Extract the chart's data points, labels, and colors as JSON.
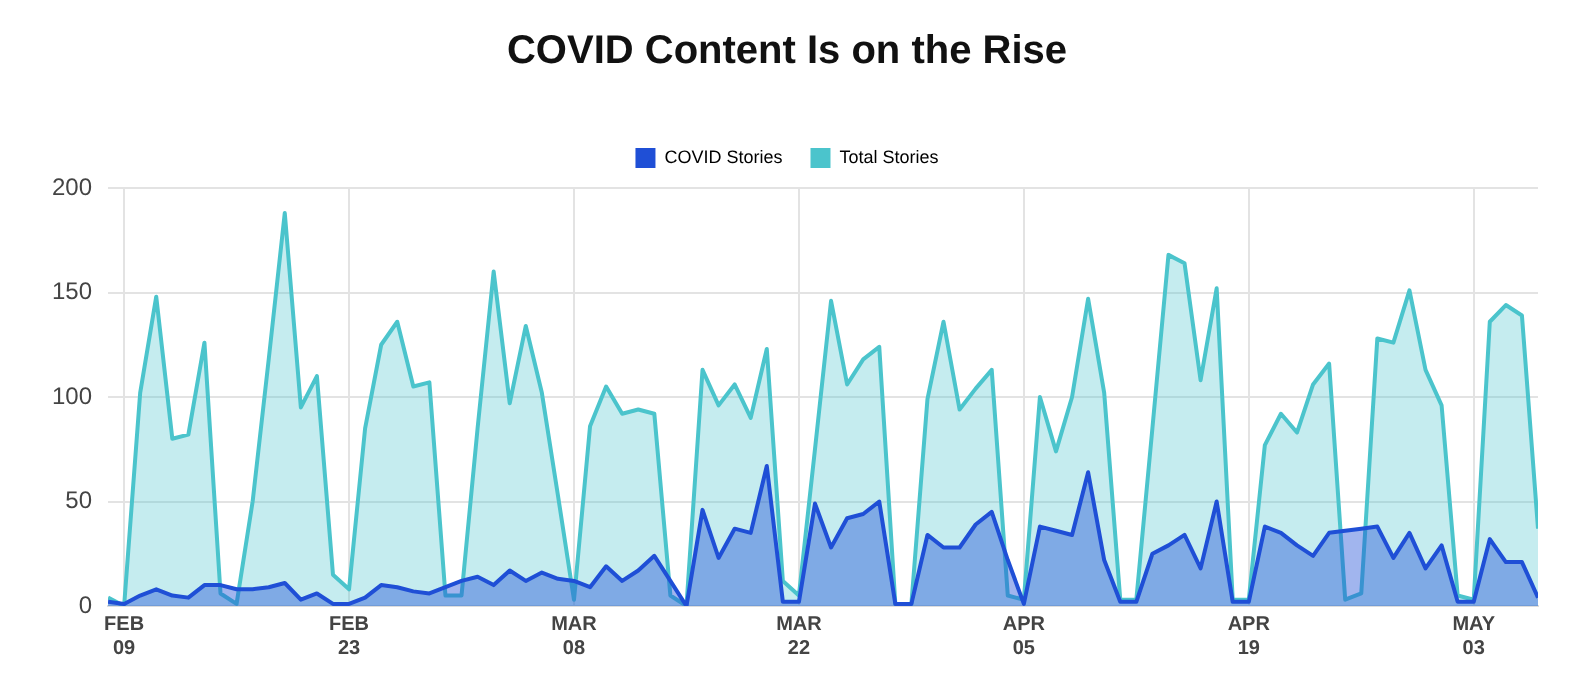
{
  "chart_data": {
    "type": "area",
    "title": "COVID Content Is on the Rise",
    "x": [
      "--02-08",
      "--02-09",
      "--02-10",
      "--02-11",
      "--02-12",
      "--02-13",
      "--02-14",
      "--02-15",
      "--02-16",
      "--02-17",
      "--02-18",
      "--02-19",
      "--02-20",
      "--02-21",
      "--02-22",
      "--02-23",
      "--02-24",
      "--02-25",
      "--02-26",
      "--02-27",
      "--02-28",
      "--02-29",
      "--03-01",
      "--03-02",
      "--03-03",
      "--03-04",
      "--03-05",
      "--03-06",
      "--03-07",
      "--03-08",
      "--03-09",
      "--03-10",
      "--03-11",
      "--03-12",
      "--03-13",
      "--03-14",
      "--03-15",
      "--03-16",
      "--03-17",
      "--03-18",
      "--03-19",
      "--03-20",
      "--03-21",
      "--03-22",
      "--03-23",
      "--03-24",
      "--03-25",
      "--03-26",
      "--03-27",
      "--03-28",
      "--03-29",
      "--03-30",
      "--03-31",
      "--04-01",
      "--04-02",
      "--04-03",
      "--04-04",
      "--04-05",
      "--04-06",
      "--04-07",
      "--04-08",
      "--04-09",
      "--04-10",
      "--04-11",
      "--04-12",
      "--04-13",
      "--04-14",
      "--04-15",
      "--04-16",
      "--04-17",
      "--04-18",
      "--04-19",
      "--04-20",
      "--04-21",
      "--04-22",
      "--04-23",
      "--04-24",
      "--04-25",
      "--04-26",
      "--04-27",
      "--04-28",
      "--04-29",
      "--04-30",
      "--05-01",
      "--05-02",
      "--05-03",
      "--05-04",
      "--05-05",
      "--05-06",
      "--05-07"
    ],
    "series": [
      {
        "name": "COVID Stories",
        "color": "#1f4fd6",
        "values": [
          2,
          1,
          5,
          8,
          5,
          4,
          10,
          10,
          8,
          8,
          9,
          11,
          3,
          6,
          1,
          1,
          4,
          10,
          9,
          7,
          6,
          9,
          12,
          14,
          10,
          17,
          12,
          16,
          13,
          12,
          9,
          19,
          12,
          17,
          24,
          12,
          0,
          46,
          23,
          37,
          35,
          67,
          2,
          2,
          49,
          28,
          42,
          44,
          50,
          1,
          1,
          34,
          28,
          28,
          39,
          45,
          22,
          1,
          38,
          36,
          34,
          64,
          22,
          2,
          2,
          25,
          29,
          34,
          18,
          50,
          2,
          2,
          38,
          35,
          29,
          24,
          35,
          36,
          37,
          38,
          23,
          35,
          18,
          29,
          2,
          2,
          32,
          21,
          21,
          4
        ]
      },
      {
        "name": "Total Stories",
        "color": "#4bc4cc",
        "values": [
          4,
          0,
          102,
          148,
          80,
          82,
          126,
          6,
          1,
          50,
          118,
          188,
          95,
          110,
          15,
          8,
          85,
          125,
          136,
          105,
          107,
          5,
          5,
          85,
          160,
          97,
          134,
          102,
          53,
          3,
          86,
          105,
          92,
          94,
          92,
          5,
          0,
          113,
          96,
          106,
          90,
          123,
          12,
          5,
          75,
          146,
          106,
          118,
          124,
          1,
          1,
          99,
          136,
          94,
          104,
          113,
          5,
          3,
          100,
          74,
          100,
          147,
          102,
          3,
          3,
          85,
          168,
          164,
          108,
          152,
          3,
          3,
          77,
          92,
          83,
          106,
          116,
          3,
          6,
          128,
          126,
          151,
          113,
          96,
          5,
          3,
          136,
          144,
          139,
          37
        ]
      }
    ],
    "xlim": [
      "--02-08",
      "--05-07"
    ],
    "xticks": [
      {
        "value": "--02-09",
        "label": "FEB 09"
      },
      {
        "value": "--02-23",
        "label": "FEB 23"
      },
      {
        "value": "--03-08",
        "label": "MAR 08"
      },
      {
        "value": "--03-22",
        "label": "MAR 22"
      },
      {
        "value": "--04-05",
        "label": "APR 05"
      },
      {
        "value": "--04-19",
        "label": "APR 19"
      },
      {
        "value": "--05-03",
        "label": "MAY 03"
      }
    ],
    "ylim": [
      0,
      200
    ],
    "yticks": [
      0,
      50,
      100,
      150,
      200
    ],
    "grid": true,
    "legend": "top",
    "marker": "none",
    "line_style": "solid"
  }
}
